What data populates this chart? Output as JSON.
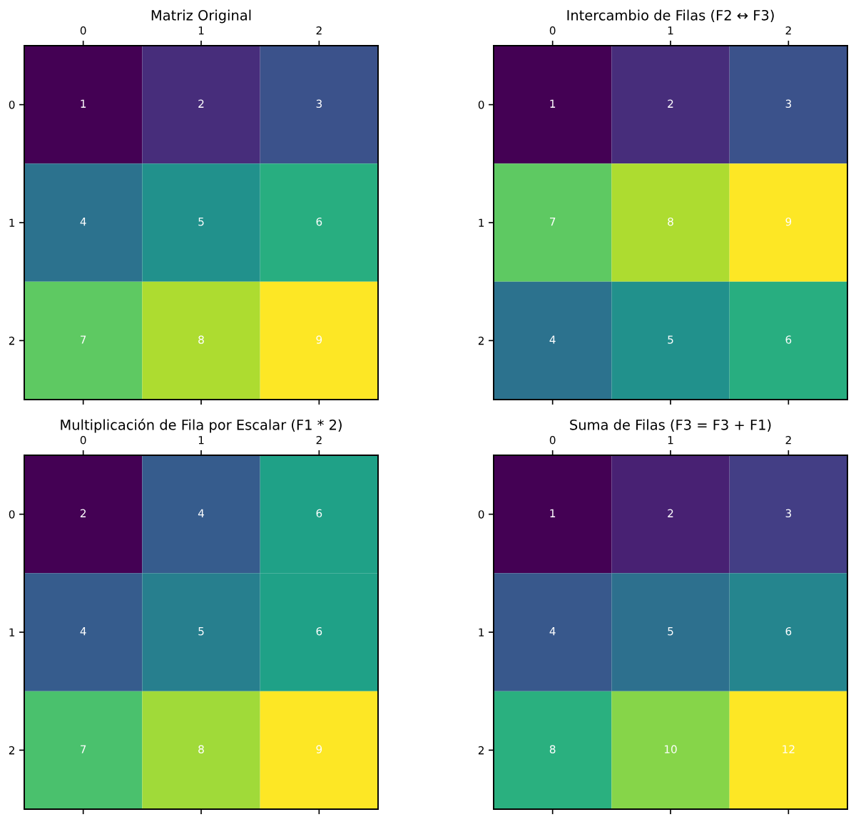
{
  "chart_data": [
    {
      "type": "heatmap",
      "title": "Matriz Original",
      "categories": [
        "0",
        "1",
        "2"
      ],
      "y_categories": [
        "0",
        "1",
        "2"
      ],
      "cells": [
        [
          1,
          2,
          3
        ],
        [
          4,
          5,
          6
        ],
        [
          7,
          8,
          9
        ]
      ],
      "data_labels": true,
      "grid": false
    },
    {
      "type": "heatmap",
      "title": "Intercambio de Filas (F2 ↔ F3)",
      "categories": [
        "0",
        "1",
        "2"
      ],
      "y_categories": [
        "0",
        "1",
        "2"
      ],
      "cells": [
        [
          1,
          2,
          3
        ],
        [
          7,
          8,
          9
        ],
        [
          4,
          5,
          6
        ]
      ],
      "data_labels": true,
      "grid": false
    },
    {
      "type": "heatmap",
      "title": "Multiplicación de Fila por Escalar (F1 * 2)",
      "categories": [
        "0",
        "1",
        "2"
      ],
      "y_categories": [
        "0",
        "1",
        "2"
      ],
      "cells": [
        [
          2,
          4,
          6
        ],
        [
          4,
          5,
          6
        ],
        [
          7,
          8,
          9
        ]
      ],
      "data_labels": true,
      "grid": false
    },
    {
      "type": "heatmap",
      "title": "Suma de Filas (F3 = F3 + F1)",
      "categories": [
        "0",
        "1",
        "2"
      ],
      "y_categories": [
        "0",
        "1",
        "2"
      ],
      "cells": [
        [
          1,
          2,
          3
        ],
        [
          4,
          5,
          6
        ],
        [
          8,
          10,
          12
        ]
      ],
      "data_labels": true,
      "grid": false
    }
  ]
}
